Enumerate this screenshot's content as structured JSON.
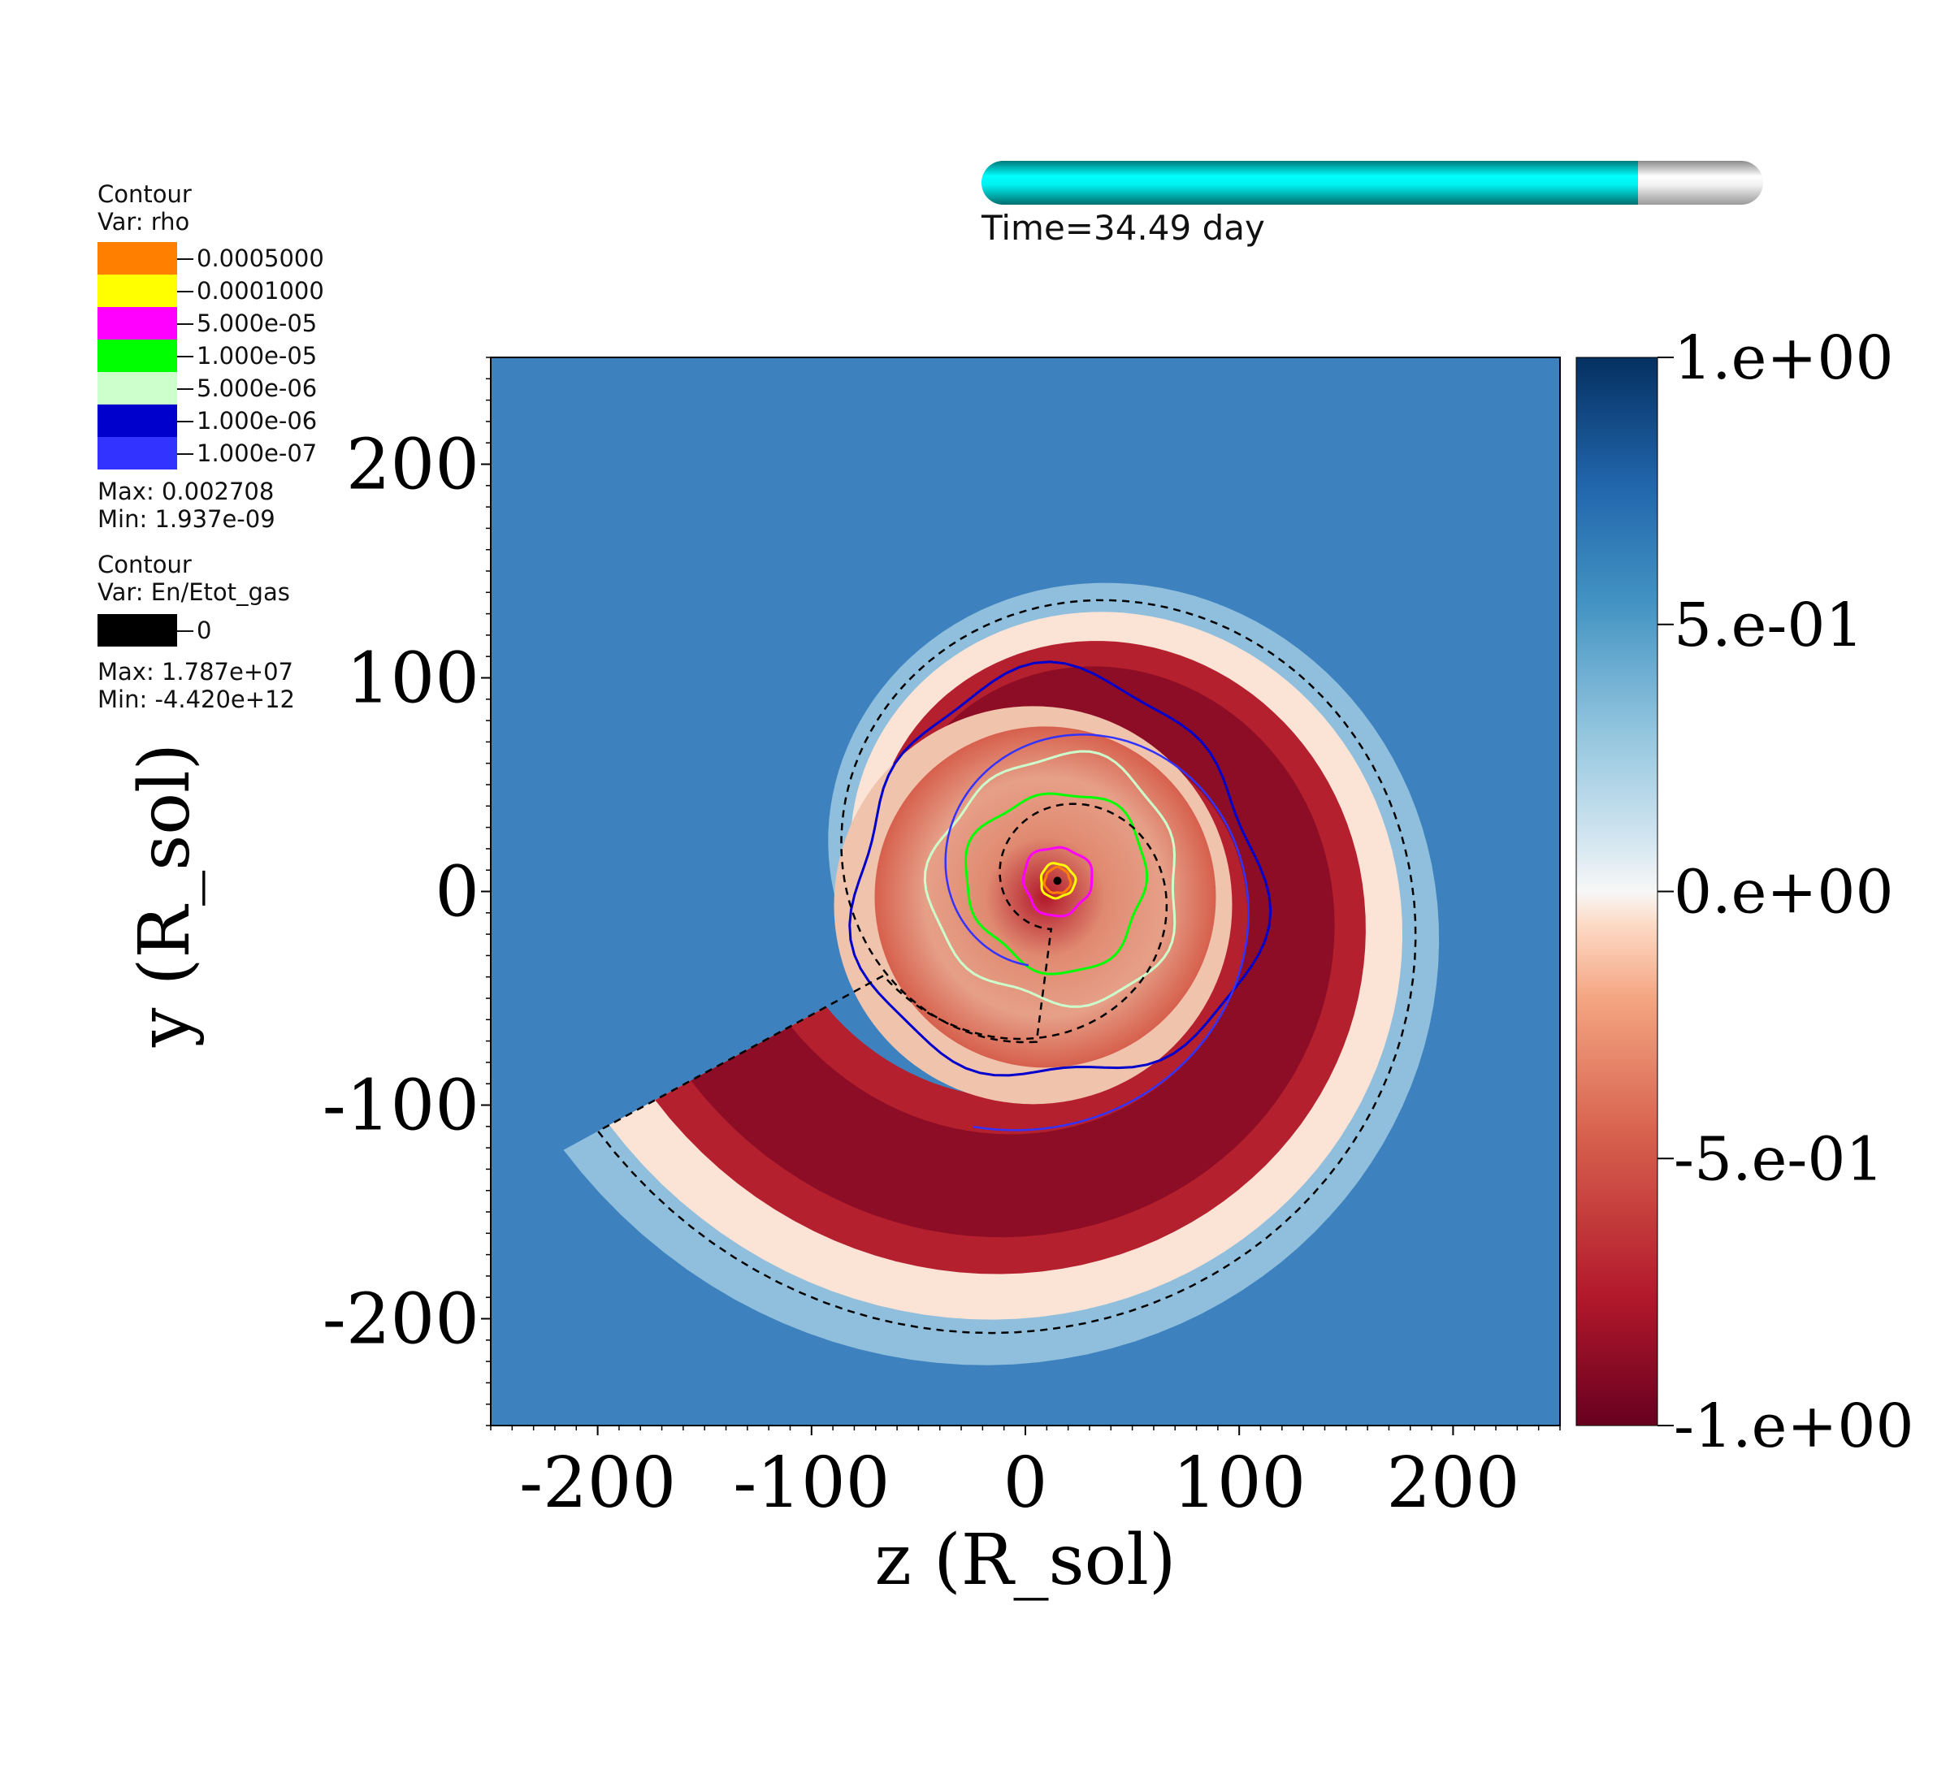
{
  "time_label": "Time=34.49 day",
  "time_progress": 0.84,
  "legend": {
    "rho": {
      "title": "Contour",
      "var": "Var: rho",
      "levels": [
        {
          "label": "0.0005000",
          "color": "#ff8000"
        },
        {
          "label": "0.0001000",
          "color": "#ffff00"
        },
        {
          "label": "5.000e-05",
          "color": "#ff00ff"
        },
        {
          "label": "1.000e-05",
          "color": "#00ff00"
        },
        {
          "label": "5.000e-06",
          "color": "#ccffcc"
        },
        {
          "label": "1.000e-06",
          "color": "#0000cc"
        },
        {
          "label": "1.000e-07",
          "color": "#3333ff"
        }
      ],
      "max": "Max:  0.002708",
      "min": "Min:  1.937e-09"
    },
    "energy": {
      "title": "Contour",
      "var": "Var: En/Etot_gas",
      "levels": [
        {
          "label": "0",
          "color": "#000000"
        }
      ],
      "max": "Max:  1.787e+07",
      "min": "Min: -4.420e+12"
    }
  },
  "chart_data": {
    "type": "heatmap",
    "xlabel": "z (R_sol)",
    "ylabel": "y (R_sol)",
    "xlim": [
      -250,
      250
    ],
    "ylim": [
      -250,
      250
    ],
    "xticks": [
      -200,
      -100,
      0,
      100,
      200
    ],
    "yticks": [
      -200,
      -100,
      0,
      100,
      200
    ],
    "colorbar": {
      "min": -1.0,
      "max": 1.0,
      "colormap": "blue-white-red (diverging, reversed)",
      "tick_values": [
        1.0,
        0.5,
        0.0,
        -0.5,
        -1.0
      ],
      "tick_labels": [
        "1.e+00",
        "5.e-01",
        "0.e+00",
        "-5.e-01",
        "-1.e+00"
      ]
    },
    "description_values": {
      "center": [
        15,
        5
      ],
      "rho_contour_radii": {
        "0.0005000": 6,
        "0.0001000": 8,
        "5.000e-05": 16,
        "1.000e-05": 42,
        "5.000e-06": 58,
        "1.000e-06": 95
      }
    }
  }
}
